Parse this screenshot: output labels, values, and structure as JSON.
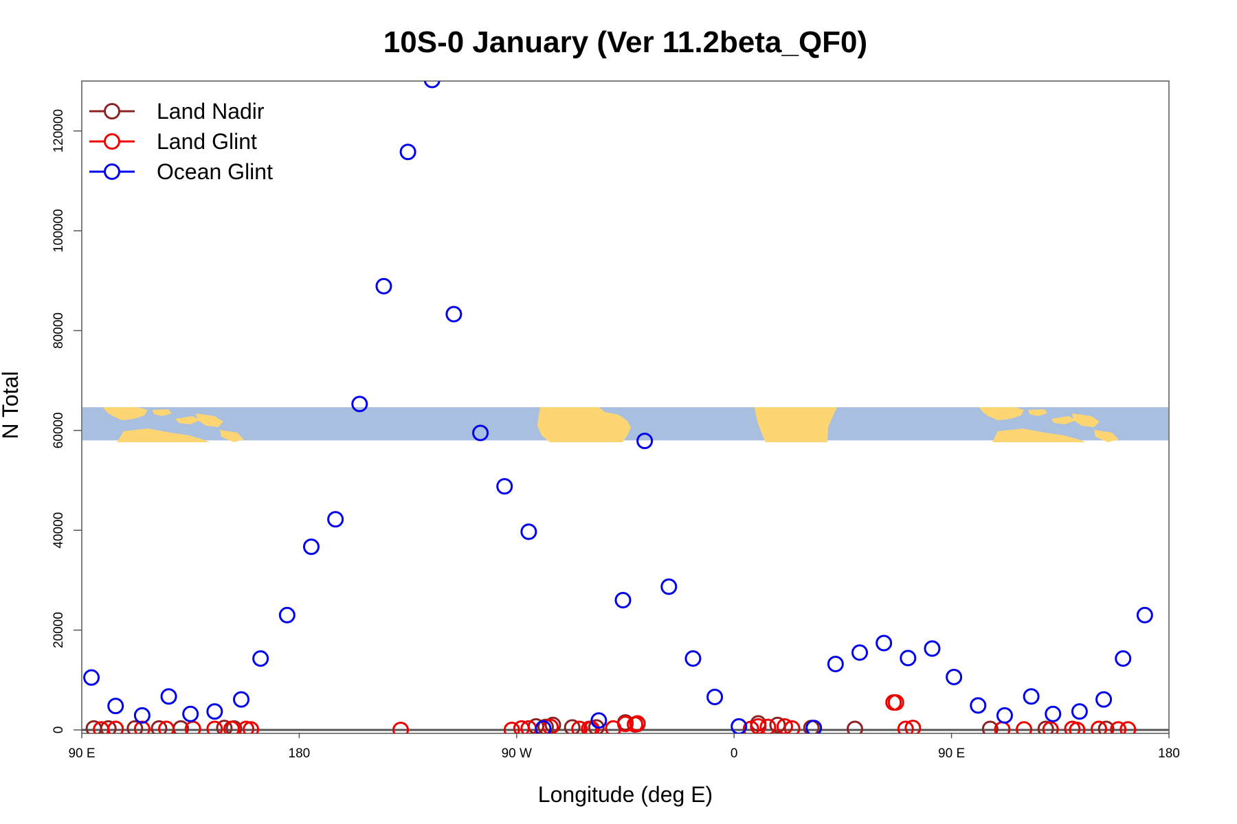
{
  "chart_data": {
    "type": "scatter",
    "title": "10S-0 January (Ver 11.2beta_QF0)",
    "xlabel": "Longitude (deg E)",
    "ylabel": "N Total",
    "xlim": [
      90,
      540
    ],
    "ylim": [
      0,
      130000
    ],
    "x_ticks": [
      {
        "value": 90,
        "label": "90 E"
      },
      {
        "value": 180,
        "label": "180"
      },
      {
        "value": 270,
        "label": "90 W"
      },
      {
        "value": 360,
        "label": "0"
      },
      {
        "value": 450,
        "label": "90 E"
      },
      {
        "value": 540,
        "label": "180"
      }
    ],
    "y_ticks": [
      {
        "value": 0,
        "label": "0"
      },
      {
        "value": 20000,
        "label": "20000"
      },
      {
        "value": 40000,
        "label": "40000"
      },
      {
        "value": 60000,
        "label": "60000"
      },
      {
        "value": 80000,
        "label": "80000"
      },
      {
        "value": 100000,
        "label": "100000"
      },
      {
        "value": 120000,
        "label": "120000"
      }
    ],
    "legend_position": "top-left",
    "map_strip": {
      "y_min": 58000,
      "y_max": 65000
    },
    "series": [
      {
        "name": "Land Nadir",
        "color": "#8b2323",
        "points": [
          [
            95,
            300
          ],
          [
            101,
            300
          ],
          [
            112,
            300
          ],
          [
            122,
            300
          ],
          [
            131,
            300
          ],
          [
            149,
            400
          ],
          [
            153,
            300
          ],
          [
            278,
            700
          ],
          [
            282,
            600
          ],
          [
            285,
            1000
          ],
          [
            293,
            500
          ],
          [
            303,
            500
          ],
          [
            315,
            1500
          ],
          [
            320,
            1200
          ],
          [
            370,
            1300
          ],
          [
            378,
            1000
          ],
          [
            392,
            400
          ],
          [
            410,
            200
          ],
          [
            466,
            200
          ],
          [
            489,
            200
          ],
          [
            514,
            200
          ]
        ]
      },
      {
        "name": "Land Glint",
        "color": "#ee0000",
        "points": [
          [
            98,
            100
          ],
          [
            104,
            200
          ],
          [
            115,
            200
          ],
          [
            125,
            200
          ],
          [
            136,
            200
          ],
          [
            145,
            200
          ],
          [
            152,
            200
          ],
          [
            158,
            200
          ],
          [
            160,
            100
          ],
          [
            222,
            0
          ],
          [
            268,
            0
          ],
          [
            272,
            300
          ],
          [
            275,
            300
          ],
          [
            284,
            600
          ],
          [
            296,
            200
          ],
          [
            300,
            200
          ],
          [
            301,
            200
          ],
          [
            310,
            300
          ],
          [
            315,
            1200
          ],
          [
            319,
            1100
          ],
          [
            320,
            1300
          ],
          [
            367,
            200
          ],
          [
            370,
            700
          ],
          [
            374,
            600
          ],
          [
            381,
            700
          ],
          [
            384,
            300
          ],
          [
            426,
            5500
          ],
          [
            427,
            5500
          ],
          [
            431,
            200
          ],
          [
            434,
            400
          ],
          [
            471,
            100
          ],
          [
            480,
            100
          ],
          [
            491,
            100
          ],
          [
            500,
            200
          ],
          [
            502,
            0
          ],
          [
            511,
            200
          ],
          [
            519,
            100
          ],
          [
            523,
            100
          ]
        ]
      },
      {
        "name": "Ocean Glint",
        "color": "#0000ee",
        "points": [
          [
            94,
            10500
          ],
          [
            104,
            4800
          ],
          [
            115,
            2900
          ],
          [
            126,
            6700
          ],
          [
            135,
            3200
          ],
          [
            145,
            3700
          ],
          [
            156,
            6100
          ],
          [
            164,
            14300
          ],
          [
            175,
            23000
          ],
          [
            185,
            36700
          ],
          [
            195,
            42200
          ],
          [
            205,
            65300
          ],
          [
            215,
            88900
          ],
          [
            225,
            115800
          ],
          [
            235,
            130200
          ],
          [
            244,
            83300
          ],
          [
            255,
            59500
          ],
          [
            265,
            48800
          ],
          [
            275,
            39700
          ],
          [
            281,
            300
          ],
          [
            304,
            1900
          ],
          [
            314,
            26000
          ],
          [
            323,
            57900
          ],
          [
            333,
            28700
          ],
          [
            343,
            14300
          ],
          [
            352,
            6600
          ],
          [
            362,
            700
          ],
          [
            393,
            400
          ],
          [
            402,
            13200
          ],
          [
            412,
            15500
          ],
          [
            422,
            17400
          ],
          [
            432,
            14400
          ],
          [
            442,
            16300
          ],
          [
            451,
            10600
          ],
          [
            461,
            4900
          ],
          [
            472,
            2900
          ],
          [
            483,
            6700
          ],
          [
            492,
            3200
          ],
          [
            503,
            3700
          ],
          [
            513,
            6100
          ],
          [
            521,
            14300
          ],
          [
            530,
            23000
          ]
        ]
      }
    ]
  }
}
